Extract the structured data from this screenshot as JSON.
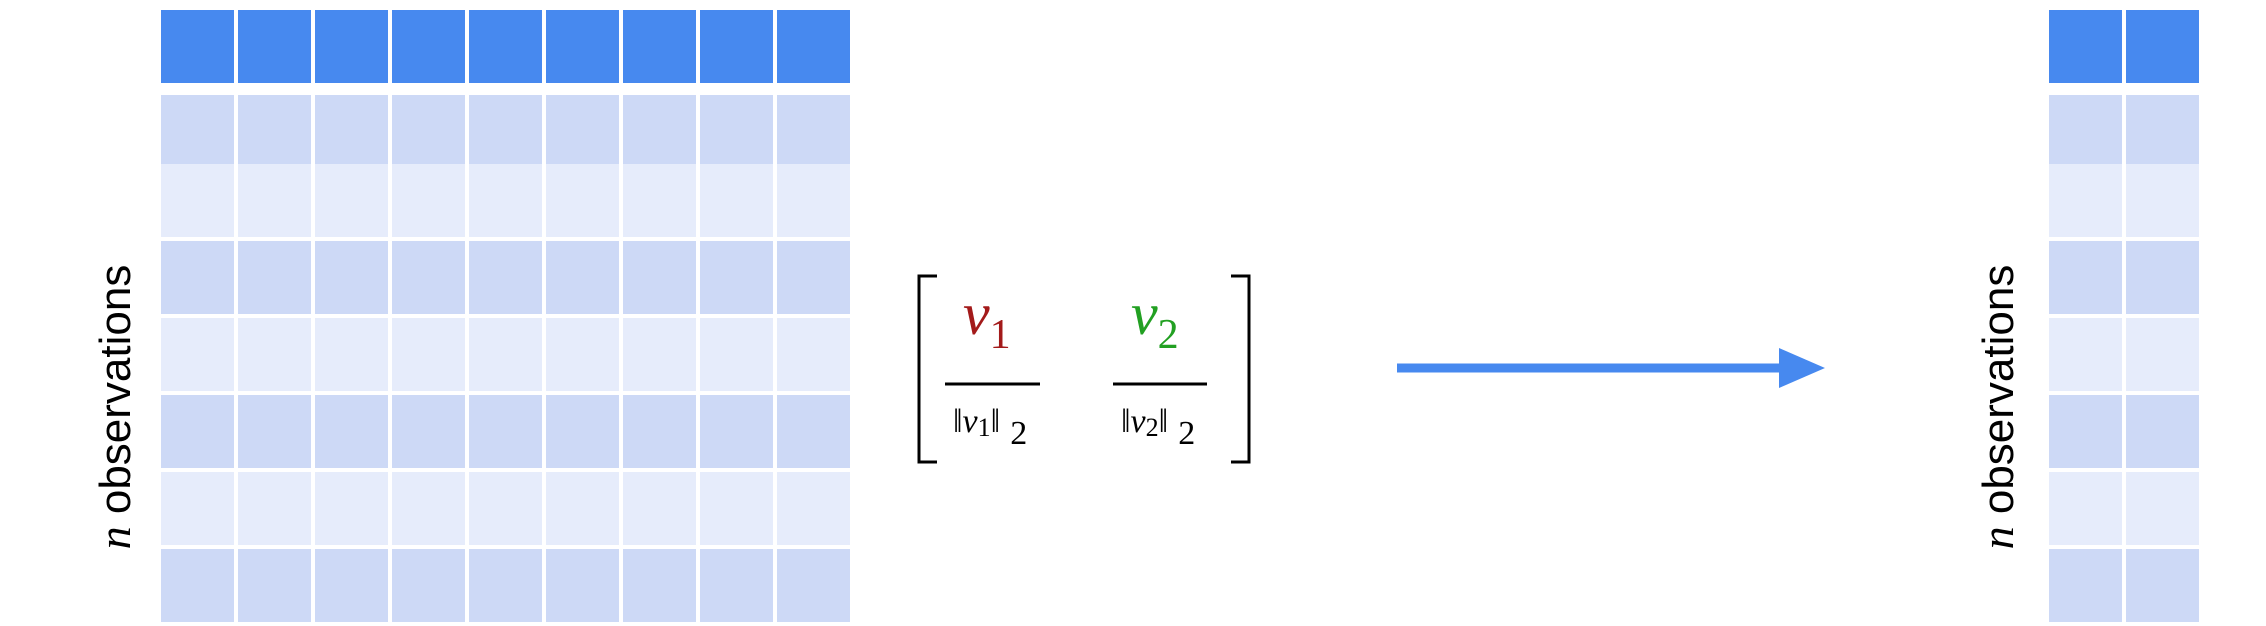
{
  "left_matrix": {
    "columns": 9,
    "body_rows": 7,
    "label": {
      "var": "n",
      "text": " observations"
    }
  },
  "right_matrix": {
    "columns": 2,
    "body_rows": 7,
    "label": {
      "var": "n",
      "text": " observations"
    }
  },
  "colors": {
    "header": "#4789EF",
    "row_dark": "#CDD9F6",
    "row_light": "#E6ECFB",
    "arrow": "#4789EF",
    "v1": "#A31A1A",
    "v2": "#22A022",
    "ink": "#000000"
  },
  "vector": {
    "v1": {
      "var": "v",
      "sub": "1",
      "norm_var": "v",
      "norm_sub": "1",
      "norm_order": "2"
    },
    "v2": {
      "var": "v",
      "sub": "2",
      "norm_var": "v",
      "norm_sub": "2",
      "norm_order": "2"
    }
  },
  "arrow": {
    "direction": "right"
  }
}
